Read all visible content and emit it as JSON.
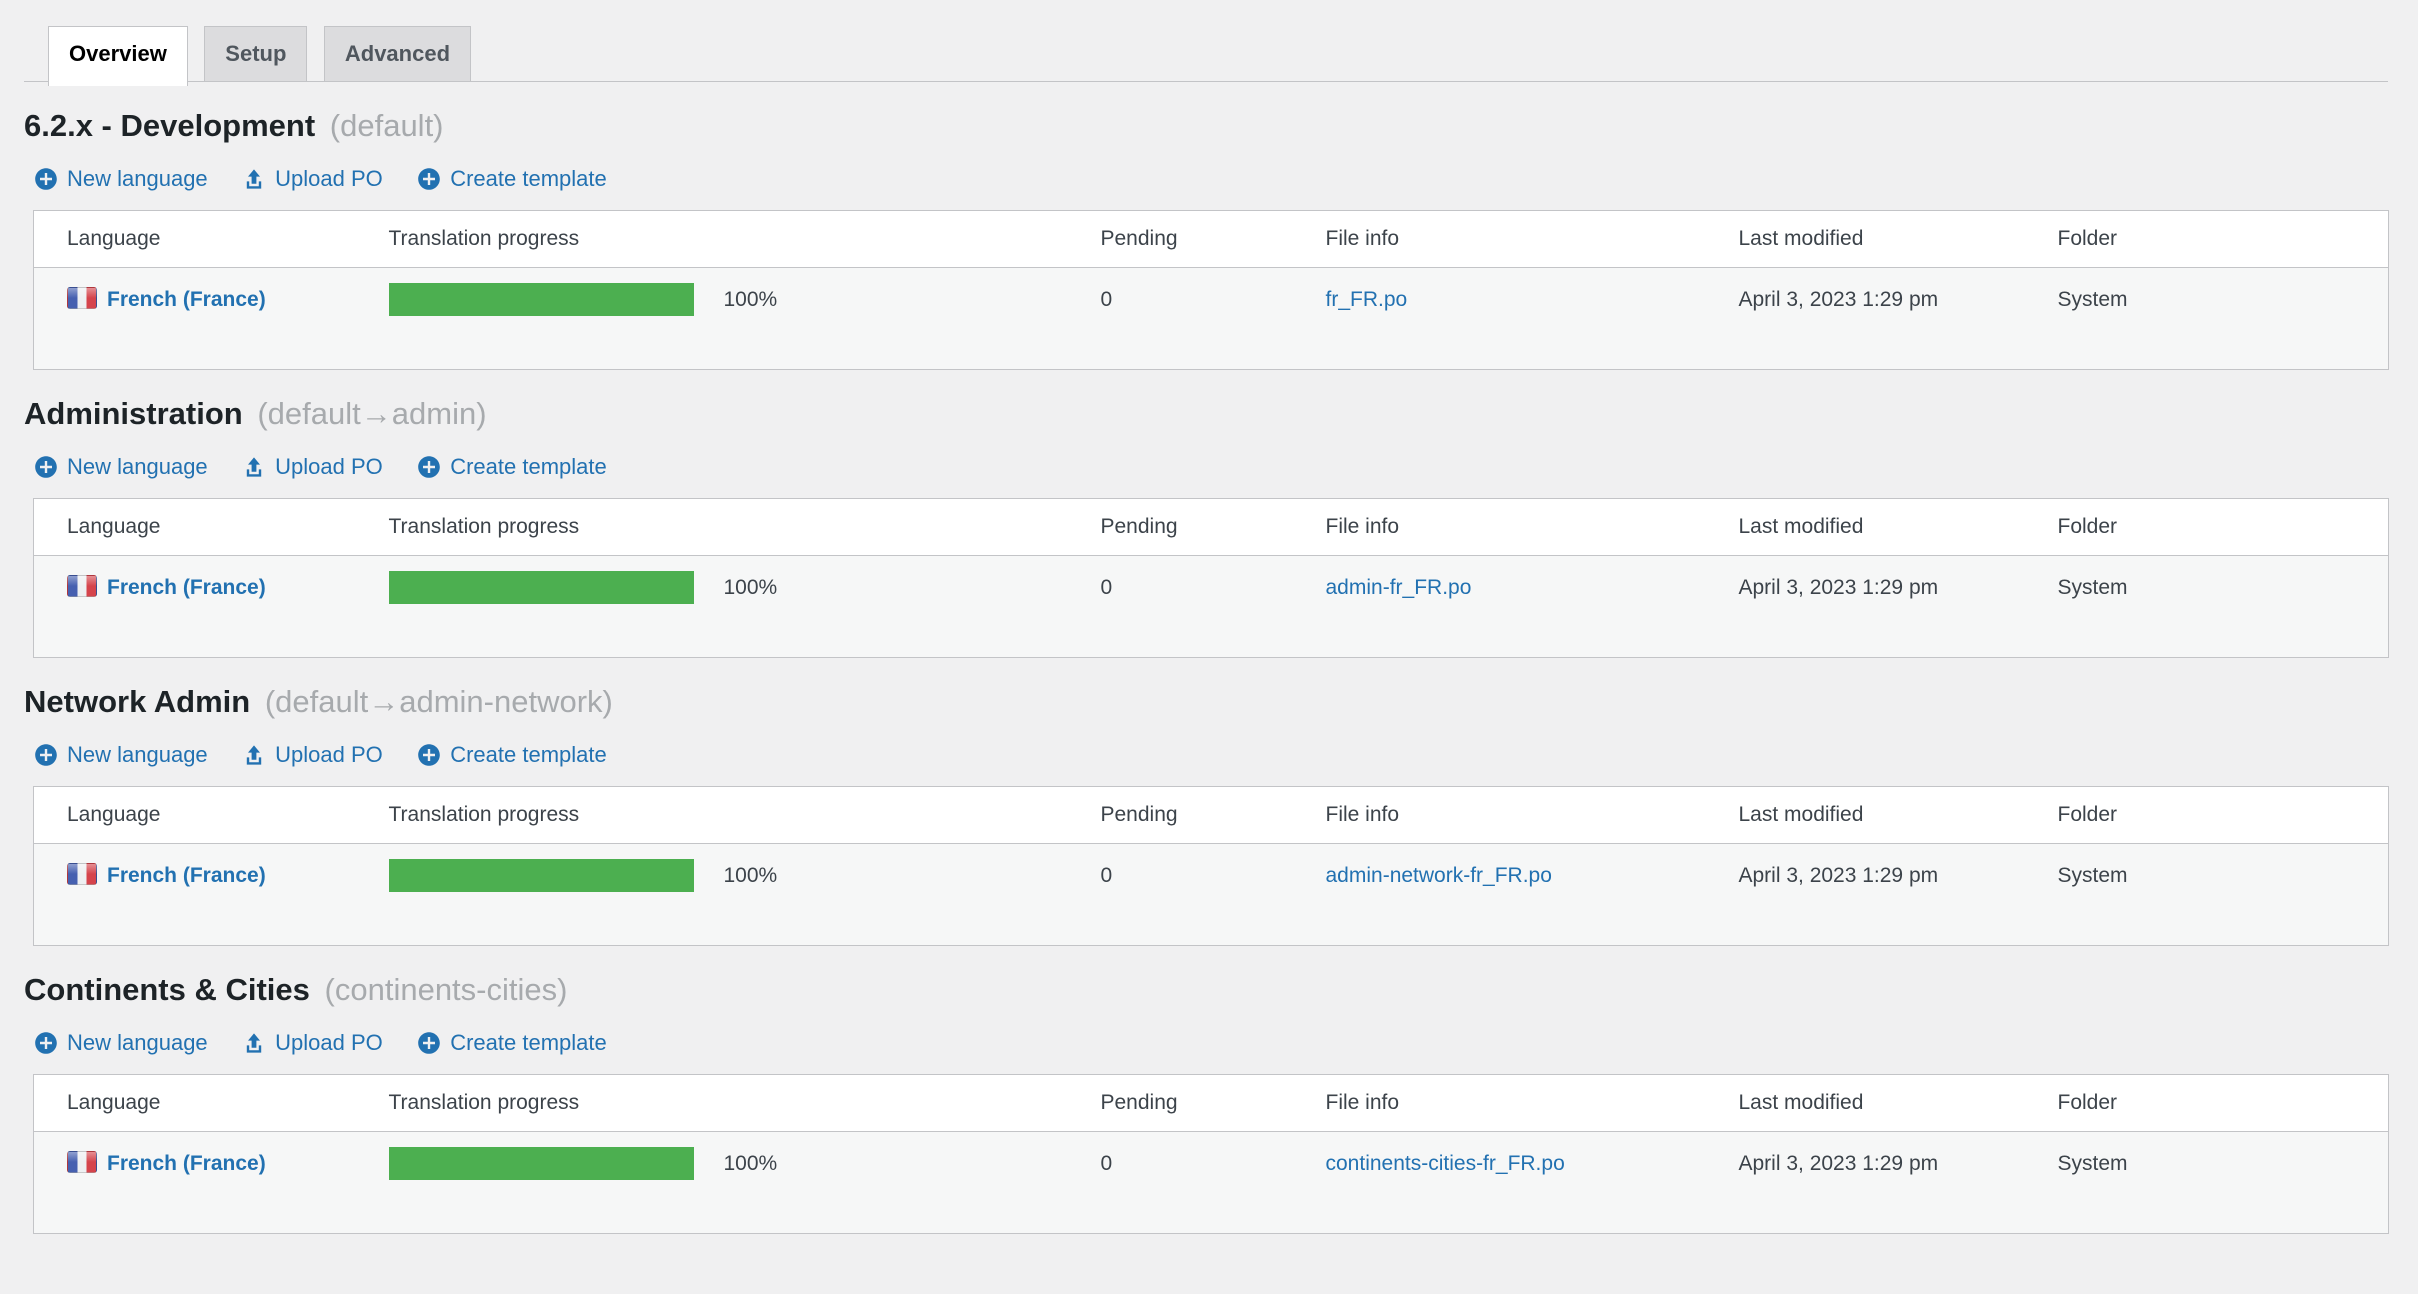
{
  "colors": {
    "accent_link": "#2271b1",
    "progress_green": "#4caf50",
    "page_bg": "#f0f0f1",
    "active_tab_bg": "#ffffff",
    "inactive_tab_bg": "#dcdcde",
    "border": "#c3c4c7"
  },
  "icons": {
    "new_language": "plus-circle",
    "upload_po": "upload-arrow-tray",
    "create_template": "plus-circle",
    "language_flag": "france-flag"
  },
  "tabs": [
    {
      "label": "Overview",
      "active": true
    },
    {
      "label": "Setup",
      "active": false
    },
    {
      "label": "Advanced",
      "active": false
    }
  ],
  "actions": {
    "new_language": "New language",
    "upload_po": "Upload PO",
    "create_template": "Create template"
  },
  "table": {
    "headers": [
      "Language",
      "Translation progress",
      "Pending",
      "File info",
      "Last modified",
      "Folder"
    ]
  },
  "sections": [
    {
      "title": "6.2.x - Development",
      "suffix": "(default)",
      "row": {
        "language": "French (France)",
        "progress_value": 100,
        "progress_pct": "100%",
        "pending": "0",
        "file": "fr_FR.po",
        "modified": "April 3, 2023 1:29 pm",
        "folder": "System"
      }
    },
    {
      "title": "Administration",
      "suffix": "(default→admin)",
      "row": {
        "language": "French (France)",
        "progress_value": 100,
        "progress_pct": "100%",
        "pending": "0",
        "file": "admin-fr_FR.po",
        "modified": "April 3, 2023 1:29 pm",
        "folder": "System"
      }
    },
    {
      "title": "Network Admin",
      "suffix": "(default→admin-network)",
      "row": {
        "language": "French (France)",
        "progress_value": 100,
        "progress_pct": "100%",
        "pending": "0",
        "file": "admin-network-fr_FR.po",
        "modified": "April 3, 2023 1:29 pm",
        "folder": "System"
      }
    },
    {
      "title": "Continents & Cities",
      "suffix": "(continents-cities)",
      "row": {
        "language": "French (France)",
        "progress_value": 100,
        "progress_pct": "100%",
        "pending": "0",
        "file": "continents-cities-fr_FR.po",
        "modified": "April 3, 2023 1:29 pm",
        "folder": "System"
      }
    }
  ]
}
